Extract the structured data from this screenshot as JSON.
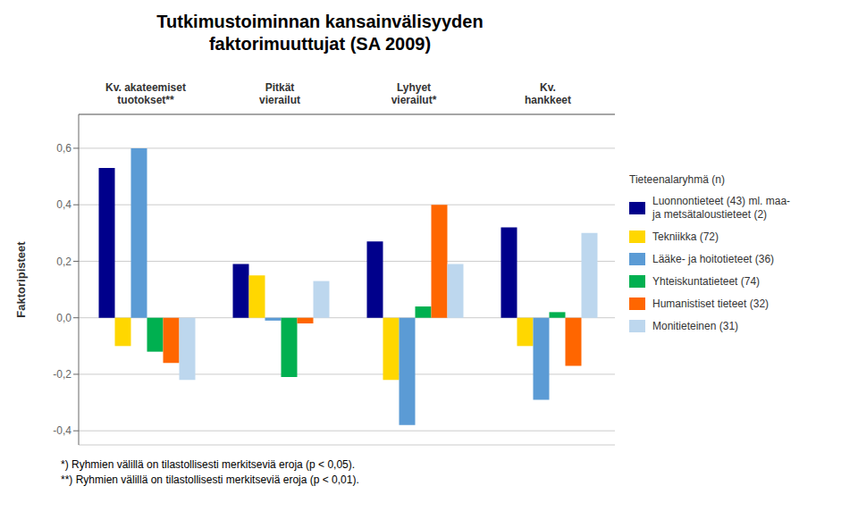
{
  "chart_data": {
    "type": "bar",
    "title": "Tutkimustoiminnan kansainvälisyyden\nfaktorimuuttujat (SA 2009)",
    "y_label": "Faktoripisteet",
    "categories": [
      "Kv. akateemiset\ntuotokset**",
      "Pitkät\nvierailut",
      "Lyhyet\nvierailut*",
      "Kv.\nhankkeet"
    ],
    "series": [
      {
        "name": "Luonnontieteet (43) ml. maa-\nja metsätaloustieteet (2)",
        "color": "#00008B",
        "values": [
          0.53,
          0.19,
          0.27,
          0.32
        ]
      },
      {
        "name": "Tekniikka (72)",
        "color": "#FFD700",
        "values": [
          -0.1,
          0.15,
          -0.22,
          -0.1
        ]
      },
      {
        "name": "Lääke- ja hoitotieteet (36)",
        "color": "#5B9BD5",
        "values": [
          0.6,
          -0.01,
          -0.38,
          -0.29
        ]
      },
      {
        "name": "Yhteiskuntatieteet (74)",
        "color": "#00B050",
        "values": [
          -0.12,
          -0.21,
          0.04,
          0.02
        ]
      },
      {
        "name": "Humanistiset tieteet (32)",
        "color": "#FF6600",
        "values": [
          -0.16,
          -0.02,
          0.4,
          -0.17
        ]
      },
      {
        "name": "Monitieteinen (31)",
        "color": "#BDD7EE",
        "values": [
          -0.22,
          0.13,
          0.19,
          0.3
        ]
      }
    ],
    "ylim": [
      -0.45,
      0.72
    ],
    "yticks": [
      {
        "value": -0.4,
        "label": "-0,4"
      },
      {
        "value": -0.2,
        "label": "-0,2"
      },
      {
        "value": 0.0,
        "label": "0,0"
      },
      {
        "value": 0.2,
        "label": "0,2"
      },
      {
        "value": 0.4,
        "label": "0,4"
      },
      {
        "value": 0.6,
        "label": "0,6"
      }
    ],
    "grid": true,
    "legend": "right",
    "legend_title": "Tieteenalaryhmä (n)",
    "annotations": [
      "*) Ryhmien välillä on tilastollisesti merkitseviä eroja (p < 0,05).",
      "**) Ryhmien välillä on tilastollisesti merkitseviä eroja (p < 0,01)."
    ]
  }
}
